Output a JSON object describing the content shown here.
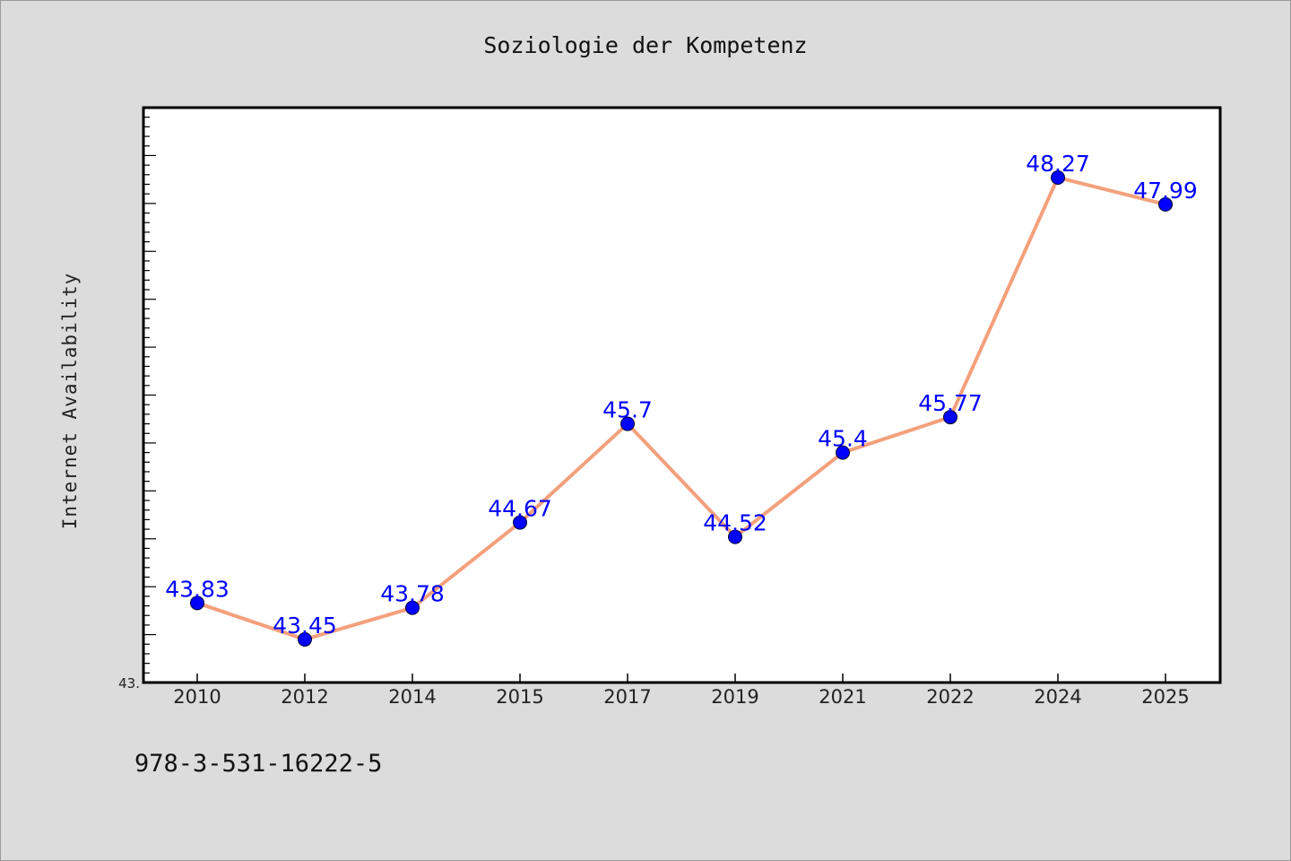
{
  "chart_data": {
    "type": "line",
    "title": "Soziologie der Kompetenz",
    "xlabel": "",
    "ylabel": "Internet Availability",
    "categories": [
      "2010",
      "2012",
      "2014",
      "2015",
      "2017",
      "2019",
      "2021",
      "2022",
      "2024",
      "2025"
    ],
    "series": [
      {
        "values": [
          43.83,
          43.45,
          43.78,
          44.67,
          45.7,
          44.52,
          45.4,
          45.77,
          48.27,
          47.99
        ],
        "labels": [
          "43.83",
          "43.45",
          "43.78",
          "44.67",
          "45.7",
          "44.52",
          "45.4",
          "45.77",
          "48.27",
          "47.99"
        ]
      }
    ],
    "ylim": [
      43.0,
      49.0
    ],
    "y_tick_labels": [
      "43."
    ],
    "grid": false,
    "line_color": "#f4a07c",
    "marker_color": "#0000ff",
    "label_color": "#0000ff",
    "background_color": "#dcdcdc",
    "plot_background": "#ffffff"
  },
  "footer": {
    "isbn": "978-3-531-16222-5"
  }
}
